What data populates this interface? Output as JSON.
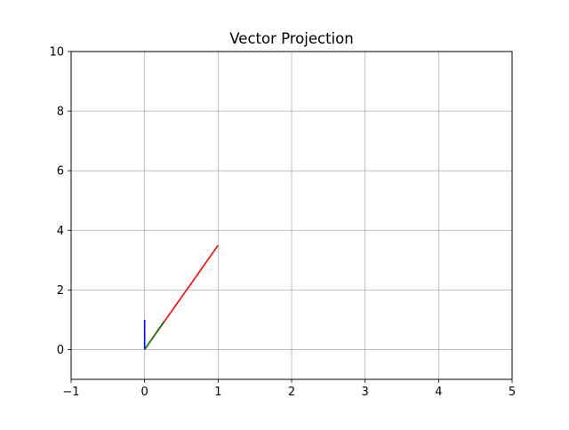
{
  "chart_data": {
    "type": "line",
    "title": "Vector Projection",
    "xlabel": "",
    "ylabel": "",
    "xlim": [
      -1,
      5
    ],
    "ylim": [
      -1,
      10
    ],
    "x_ticks": [
      -1,
      0,
      1,
      2,
      3,
      4,
      5
    ],
    "y_ticks": [
      0,
      2,
      4,
      6,
      8,
      10
    ],
    "grid": true,
    "legend": "none",
    "series": [
      {
        "color": "#ff0000",
        "points": [
          [
            0,
            0
          ],
          [
            1,
            3.5
          ]
        ]
      },
      {
        "color": "#0000ff",
        "points": [
          [
            0,
            0
          ],
          [
            0,
            1
          ]
        ]
      },
      {
        "color": "#008000",
        "points": [
          [
            0,
            0
          ],
          [
            0.26,
            0.93
          ]
        ]
      }
    ]
  }
}
